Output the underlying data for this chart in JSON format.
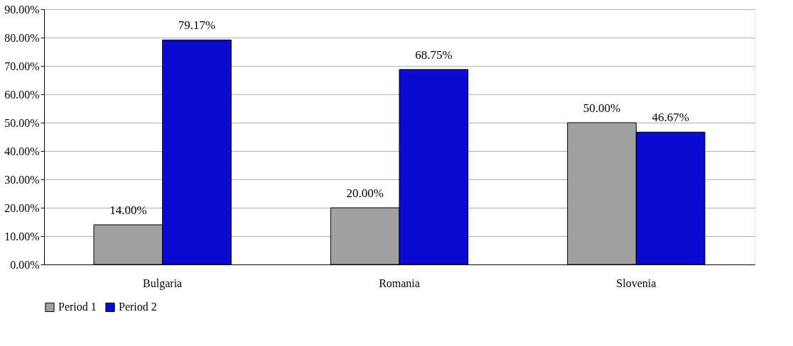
{
  "chart_data": {
    "type": "bar",
    "categories": [
      "Bulgaria",
      "Romania",
      "Slovenia"
    ],
    "series": [
      {
        "name": "Period 1",
        "color": "#a0a0a0",
        "values": [
          14.0,
          20.0,
          50.0
        ],
        "value_labels": [
          "14.00%",
          "20.00%",
          "50.00%"
        ]
      },
      {
        "name": "Period 2",
        "color": "#0a0ad0",
        "values": [
          79.17,
          68.75,
          46.67
        ],
        "value_labels": [
          "79.17%",
          "68.75%",
          "46.67%"
        ]
      }
    ],
    "ylim": [
      0,
      90
    ],
    "yticks": [
      {
        "value": 0,
        "label": "0.00%"
      },
      {
        "value": 10,
        "label": "10.00%"
      },
      {
        "value": 20,
        "label": "20.00%"
      },
      {
        "value": 30,
        "label": "30.00%"
      },
      {
        "value": 40,
        "label": "40.00%"
      },
      {
        "value": 50,
        "label": "50.00%"
      },
      {
        "value": 60,
        "label": "60.00%"
      },
      {
        "value": 70,
        "label": "70.00%"
      },
      {
        "value": 80,
        "label": "80.00%"
      },
      {
        "value": 90,
        "label": "90.00%"
      }
    ],
    "grid": "y",
    "legend": "bottom"
  }
}
